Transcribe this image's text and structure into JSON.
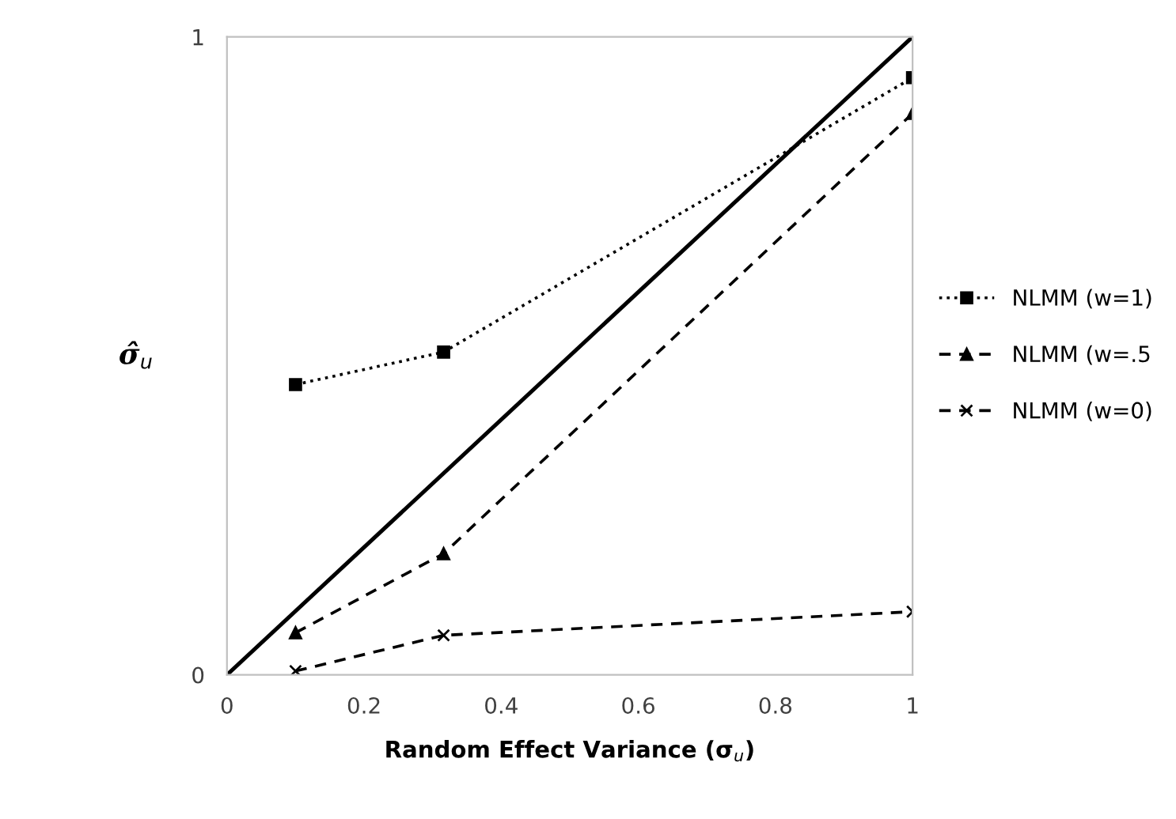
{
  "chart_data": {
    "type": "line",
    "xlabel": "Random Effect Variance (σ$_{u}$)",
    "ylabel": "σ̂$_{u}$",
    "xlim": [
      0,
      1
    ],
    "xticks": [
      0,
      0.2,
      0.4,
      0.6,
      0.8,
      1
    ],
    "ylim": [
      0,
      1
    ],
    "yticks": [
      0,
      1
    ],
    "grid": false,
    "legend": "right",
    "series": [
      {
        "name": "NLMM (w=1)",
        "color": "#000000",
        "x": [
          0.1,
          0.316,
          1
        ],
        "values": [
          0.455,
          0.506,
          0.936
        ],
        "marker": "square",
        "line_style": "dotted"
      },
      {
        "name": "NLMM (w=.5",
        "color": "#000000",
        "x": [
          0.1,
          0.316,
          1
        ],
        "values": [
          0.066,
          0.19,
          0.88
        ],
        "marker": "triangle",
        "line_style": "dashed"
      },
      {
        "name": "NLMM (w=0)",
        "color": "#000000",
        "x": [
          0.1,
          0.316,
          1
        ],
        "values": [
          0.006,
          0.062,
          0.099
        ],
        "marker": "cross",
        "line_style": "dashed"
      },
      {
        "color": "#000000",
        "x": [
          0,
          1
        ],
        "values": [
          0,
          1
        ],
        "marker": "none",
        "line_style": "solid"
      }
    ]
  }
}
